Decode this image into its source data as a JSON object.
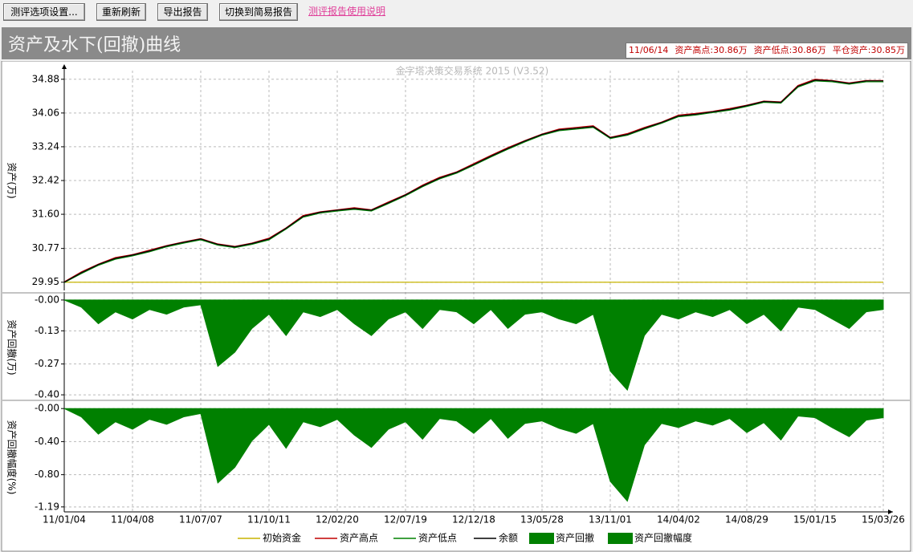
{
  "toolbar": {
    "buttons": [
      "测评选项设置...",
      "重新刷新",
      "导出报告",
      "切换到简易报告"
    ],
    "help_link": "测评报告使用说明"
  },
  "header": {
    "title": "资产及水下(回撤)曲线",
    "info": [
      "11/06/14",
      "资产高点:30.86万",
      "资产低点:30.86万",
      "平仓资产:30.85万"
    ]
  },
  "chart_data": [
    {
      "type": "line",
      "watermark": "金字塔决策交易系统 2015 (V3.52)",
      "y_label": "资产(万)",
      "grid": true,
      "legend": "bottom",
      "ylim": [
        29.75,
        35.09
      ],
      "yticks": [
        29.95,
        30.77,
        {
          "value": 31.6,
          "label": "31.60"
        },
        32.42,
        33.24,
        34.06,
        34.88
      ],
      "series": [
        {
          "name": "初始资金",
          "color": "#c8b400",
          "values": [
            29.95,
            29.95,
            29.95,
            29.95,
            29.95,
            29.95,
            29.95,
            29.95,
            29.95,
            29.95,
            29.95,
            29.95,
            29.95,
            29.95,
            29.95,
            29.95,
            29.95,
            29.95,
            29.95,
            29.95,
            29.95,
            29.95,
            29.95,
            29.95,
            29.95,
            29.95,
            29.95,
            29.95,
            29.95,
            29.95,
            29.95,
            29.95,
            29.95,
            29.95,
            29.95,
            29.95,
            29.95,
            29.95,
            29.95,
            29.95,
            29.95,
            29.95,
            29.95,
            29.95,
            29.95,
            29.95,
            29.95,
            29.95,
            29.95
          ]
        },
        {
          "name": "资产高点",
          "color": "#c00000",
          "values": [
            29.96,
            30.2,
            30.39,
            30.55,
            30.62,
            30.73,
            30.84,
            30.93,
            31.01,
            30.88,
            30.82,
            30.9,
            31.02,
            31.27,
            31.57,
            31.66,
            31.71,
            31.76,
            31.71,
            31.9,
            32.08,
            32.31,
            32.5,
            32.63,
            32.83,
            33.03,
            33.22,
            33.39,
            33.55,
            33.67,
            33.71,
            33.75,
            33.47,
            33.56,
            33.71,
            33.84,
            34.01,
            34.05,
            34.1,
            34.17,
            34.25,
            34.35,
            34.33,
            34.73,
            34.88,
            34.85,
            34.79,
            34.85,
            34.85
          ]
        },
        {
          "name": "资产低点",
          "color": "#008000",
          "values": [
            29.94,
            30.16,
            30.36,
            30.51,
            30.59,
            30.69,
            30.81,
            30.9,
            30.98,
            30.85,
            30.79,
            30.87,
            30.98,
            31.24,
            31.53,
            31.63,
            31.68,
            31.72,
            31.68,
            31.86,
            32.05,
            32.27,
            32.46,
            32.6,
            32.79,
            32.99,
            33.18,
            33.36,
            33.52,
            33.63,
            33.67,
            33.71,
            33.44,
            33.52,
            33.67,
            33.81,
            33.97,
            34.01,
            34.07,
            34.13,
            34.22,
            34.32,
            34.3,
            34.69,
            34.84,
            34.82,
            34.76,
            34.82,
            34.82
          ]
        },
        {
          "name": "余额",
          "color": "#000000",
          "values": [
            29.95,
            30.18,
            30.38,
            30.53,
            30.61,
            30.71,
            30.83,
            30.92,
            31.0,
            30.87,
            30.81,
            30.89,
            31.0,
            31.26,
            31.55,
            31.65,
            31.7,
            31.74,
            31.7,
            31.88,
            32.07,
            32.29,
            32.48,
            32.62,
            32.81,
            33.01,
            33.2,
            33.38,
            33.54,
            33.65,
            33.69,
            33.73,
            33.46,
            33.54,
            33.69,
            33.83,
            33.99,
            34.03,
            34.09,
            34.15,
            34.24,
            34.34,
            34.32,
            34.71,
            34.86,
            34.84,
            34.78,
            34.84,
            34.84
          ]
        }
      ]
    },
    {
      "type": "area",
      "y_label": "资产回撤(万)",
      "grid": true,
      "ylim": [
        -0.42,
        0.02
      ],
      "yticks": [
        {
          "value": 0,
          "label": "-0.00"
        },
        -0.13,
        -0.27,
        {
          "value": -0.4,
          "label": "-0.40"
        }
      ],
      "series": [
        {
          "name": "资产回撤",
          "color": "#008000",
          "values": [
            0,
            -0.03,
            -0.1,
            -0.05,
            -0.08,
            -0.04,
            -0.06,
            -0.03,
            -0.02,
            -0.28,
            -0.22,
            -0.12,
            -0.06,
            -0.15,
            -0.05,
            -0.07,
            -0.04,
            -0.1,
            -0.15,
            -0.08,
            -0.05,
            -0.12,
            -0.04,
            -0.05,
            -0.1,
            -0.04,
            -0.12,
            -0.06,
            -0.05,
            -0.08,
            -0.1,
            -0.06,
            -0.3,
            -0.38,
            -0.15,
            -0.06,
            -0.08,
            -0.05,
            -0.07,
            -0.04,
            -0.1,
            -0.06,
            -0.13,
            -0.03,
            -0.04,
            -0.08,
            -0.12,
            -0.05,
            -0.04
          ]
        }
      ]
    },
    {
      "type": "area",
      "y_label": "资产回撤幅度(%)",
      "grid": true,
      "ylim": [
        -1.25,
        0.07
      ],
      "yticks": [
        {
          "value": 0,
          "label": "-0.00"
        },
        {
          "value": -0.4,
          "label": "-0.40"
        },
        {
          "value": -0.8,
          "label": "-0.80"
        },
        -1.19
      ],
      "categories": [
        "11/01/04",
        null,
        null,
        null,
        "11/04/08",
        null,
        null,
        null,
        "11/07/07",
        null,
        null,
        null,
        "11/10/11",
        null,
        null,
        null,
        "12/02/20",
        null,
        null,
        null,
        "12/07/19",
        null,
        null,
        null,
        "12/12/18",
        null,
        null,
        null,
        "13/05/28",
        null,
        null,
        null,
        "13/11/01",
        null,
        null,
        null,
        "14/04/02",
        null,
        null,
        null,
        "14/08/29",
        null,
        null,
        null,
        "15/01/15",
        null,
        null,
        null,
        "15/03/26"
      ],
      "series": [
        {
          "name": "资产回撤幅度",
          "color": "#008000",
          "values": [
            0,
            -0.1,
            -0.31,
            -0.16,
            -0.25,
            -0.13,
            -0.19,
            -0.1,
            -0.06,
            -0.9,
            -0.71,
            -0.39,
            -0.19,
            -0.48,
            -0.16,
            -0.22,
            -0.13,
            -0.32,
            -0.47,
            -0.25,
            -0.16,
            -0.37,
            -0.12,
            -0.15,
            -0.3,
            -0.12,
            -0.36,
            -0.18,
            -0.15,
            -0.24,
            -0.3,
            -0.18,
            -0.88,
            -1.12,
            -0.44,
            -0.18,
            -0.23,
            -0.15,
            -0.2,
            -0.12,
            -0.29,
            -0.17,
            -0.38,
            -0.09,
            -0.11,
            -0.23,
            -0.34,
            -0.14,
            -0.11
          ]
        }
      ]
    }
  ]
}
